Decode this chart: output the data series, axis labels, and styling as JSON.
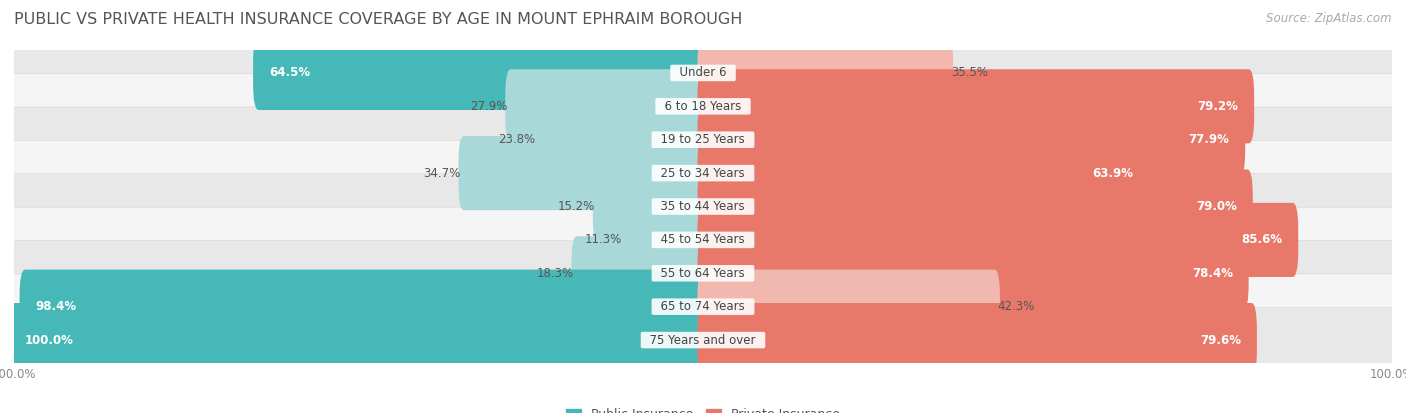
{
  "title": "PUBLIC VS PRIVATE HEALTH INSURANCE COVERAGE BY AGE IN MOUNT EPHRAIM BOROUGH",
  "source": "Source: ZipAtlas.com",
  "categories": [
    "Under 6",
    "6 to 18 Years",
    "19 to 25 Years",
    "25 to 34 Years",
    "35 to 44 Years",
    "45 to 54 Years",
    "55 to 64 Years",
    "65 to 74 Years",
    "75 Years and over"
  ],
  "public_values": [
    64.5,
    27.9,
    23.8,
    34.7,
    15.2,
    11.3,
    18.3,
    98.4,
    100.0
  ],
  "private_values": [
    35.5,
    79.2,
    77.9,
    63.9,
    79.0,
    85.6,
    78.4,
    42.3,
    79.6
  ],
  "public_color": "#47b8b8",
  "public_color_light": "#a8d8d8",
  "private_color": "#e8796a",
  "private_color_light": "#f0b8ae",
  "bg_row_dark": "#e8e8e8",
  "bg_row_light": "#f5f5f5",
  "title_fontsize": 11.5,
  "label_fontsize": 8.5,
  "category_fontsize": 8.5,
  "legend_fontsize": 9,
  "source_fontsize": 8.5,
  "bar_height": 0.62,
  "max_value": 100.0,
  "public_threshold": 50,
  "private_threshold": 50
}
